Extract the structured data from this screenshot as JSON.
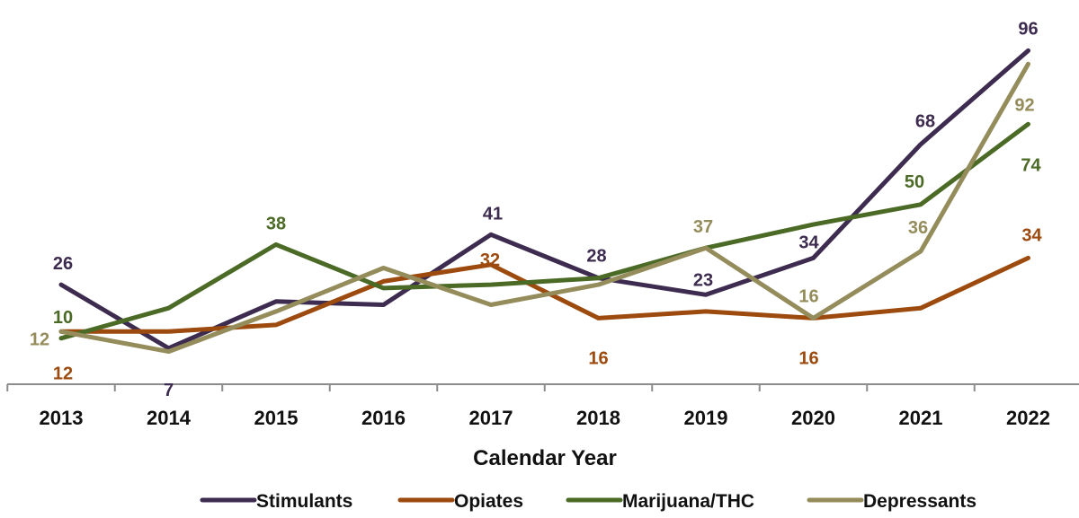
{
  "chart_data": {
    "type": "line",
    "categories": [
      "2013",
      "2014",
      "2015",
      "2016",
      "2017",
      "2018",
      "2019",
      "2020",
      "2021",
      "2022"
    ],
    "xlabel": "Calendar Year",
    "ylabel": "",
    "title": "",
    "ylim": [
      0,
      100
    ],
    "grid": false,
    "legend_position": "bottom",
    "series": [
      {
        "name": "Stimulants",
        "color": "#3d2c4f",
        "values": [
          26,
          7,
          21,
          20,
          41,
          28,
          23,
          34,
          68,
          96
        ],
        "labels": {
          "0": "26",
          "1": "7",
          "4": "41",
          "5": "28",
          "6": "23",
          "7": "34",
          "8": "68",
          "9": "96"
        }
      },
      {
        "name": "Opiates",
        "color": "#9c4a0e",
        "values": [
          12,
          12,
          14,
          27,
          32,
          16,
          18,
          16,
          19,
          34
        ],
        "labels": {
          "0": "12",
          "4": "32",
          "5": "16",
          "7": "16",
          "9": "34"
        }
      },
      {
        "name": "Marijuana/THC",
        "color": "#4b6a26",
        "values": [
          10,
          19,
          38,
          25,
          26,
          28,
          37,
          44,
          50,
          74
        ],
        "labels": {
          "0": "10",
          "2": "38",
          "8": "50",
          "9": "74"
        }
      },
      {
        "name": "Depressants",
        "color": "#948c5a",
        "values": [
          12,
          6,
          18,
          31,
          20,
          26,
          37,
          16,
          36,
          92
        ],
        "labels": {
          "0": "12",
          "6": "37",
          "7": "16",
          "8": "36",
          "9": "92"
        }
      }
    ]
  }
}
